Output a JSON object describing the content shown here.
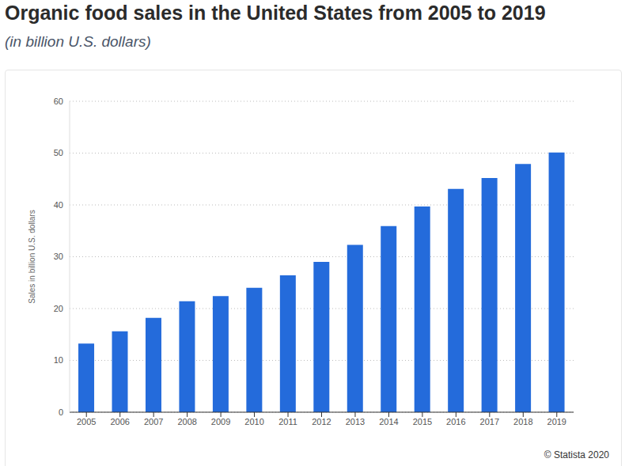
{
  "chart_data": {
    "type": "bar",
    "title": "Organic food sales in the United States from 2005 to 2019",
    "subtitle": "(in billion U.S. dollars)",
    "y_label": "Sales in billion U.S. dollars",
    "source": "© Statista 2020",
    "categories": [
      "2005",
      "2006",
      "2007",
      "2008",
      "2009",
      "2010",
      "2011",
      "2012",
      "2013",
      "2014",
      "2015",
      "2016",
      "2017",
      "2018",
      "2019"
    ],
    "values": [
      13.26,
      15.6,
      18.2,
      21.4,
      22.4,
      24.0,
      26.4,
      29.0,
      32.3,
      35.9,
      39.7,
      43.1,
      45.2,
      47.9,
      50.1
    ],
    "color": "#246bdb",
    "ylim": [
      0,
      60
    ],
    "yticks": [
      0,
      10,
      20,
      30,
      40,
      50,
      60
    ],
    "grid": true
  }
}
